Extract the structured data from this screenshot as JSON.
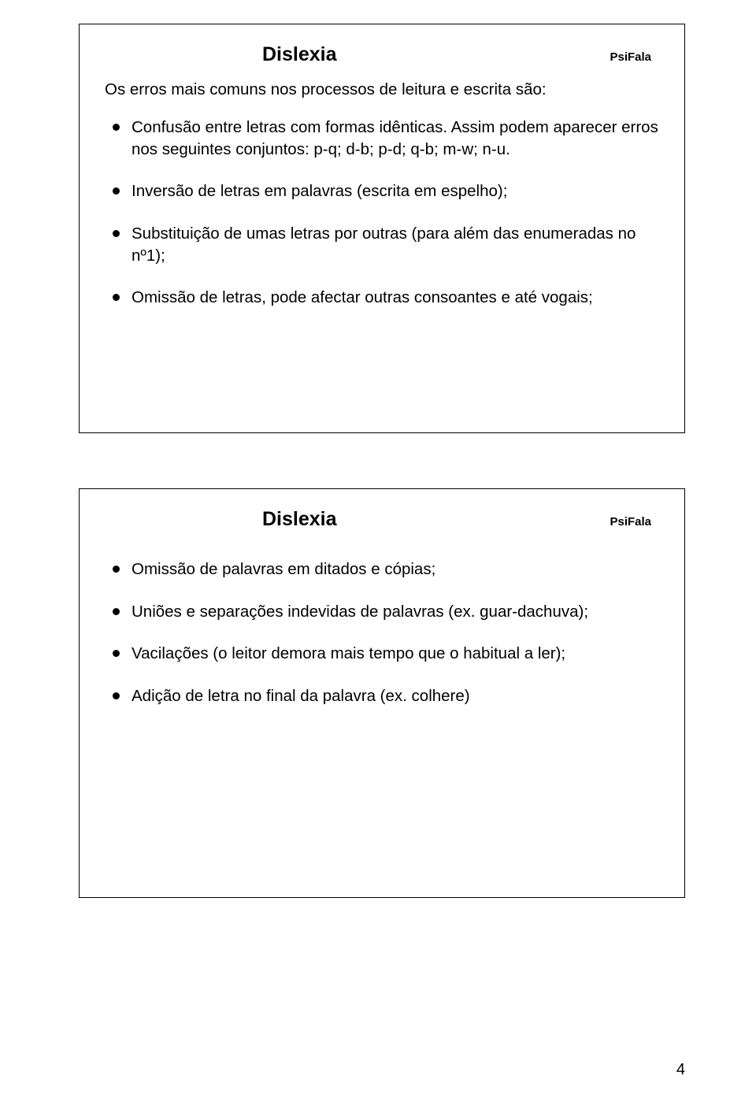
{
  "page": {
    "number": "4",
    "background_color": "#ffffff",
    "text_color": "#000000",
    "border_color": "#000000"
  },
  "slide1": {
    "title": "Dislexia",
    "brand": "PsiFala",
    "intro": "Os erros mais comuns nos processos de leitura e escrita são:",
    "bullets": [
      "Confusão entre letras com formas idênticas. Assim podem aparecer erros nos seguintes conjuntos: p-q; d-b; p-d; q-b; m-w; n-u.",
      "Inversão de letras em palavras (escrita em espelho);",
      "Substituição de umas letras por outras (para além das enumeradas no nº1);",
      "Omissão de letras, pode afectar outras consoantes e até vogais;"
    ]
  },
  "slide2": {
    "title": "Dislexia",
    "brand": "PsiFala",
    "bullets": [
      "Omissão de palavras em ditados e cópias;",
      "Uniões e separações indevidas de palavras (ex. guar-dachuva);",
      "Vacilações (o leitor demora mais tempo que o habitual a ler);",
      "Adição de letra no final da palavra (ex. colhere)"
    ]
  }
}
